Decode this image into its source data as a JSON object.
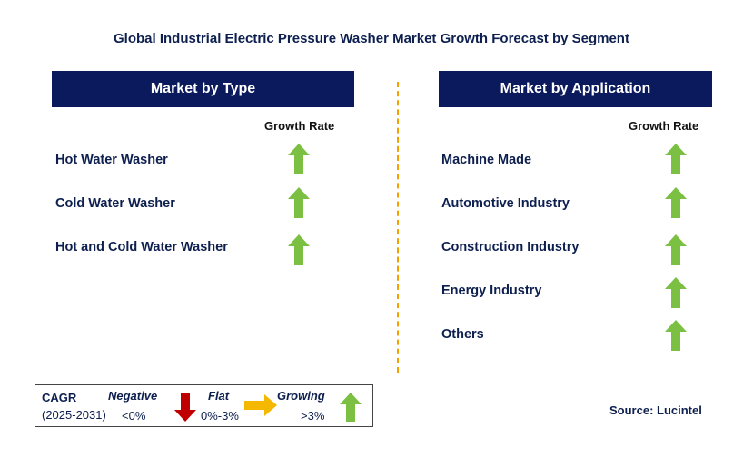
{
  "title": "Global Industrial Electric Pressure Washer Market Growth Forecast by Segment",
  "colors": {
    "header_bg": "#0b1a5c",
    "growing": "#7bc043",
    "negative": "#c00000",
    "flat": "#f5b800",
    "divider": "#f2a100"
  },
  "chart_data": {
    "type": "table",
    "panels": [
      {
        "header": "Market by Type",
        "column_label": "Growth Rate",
        "rows": [
          {
            "label": "Hot Water Washer",
            "growth": "growing",
            "icon": "up-arrow-icon"
          },
          {
            "label": "Cold Water Washer",
            "growth": "growing",
            "icon": "up-arrow-icon"
          },
          {
            "label": "Hot and Cold Water Washer",
            "growth": "growing",
            "icon": "up-arrow-icon"
          }
        ]
      },
      {
        "header": "Market by Application",
        "column_label": "Growth Rate",
        "rows": [
          {
            "label": "Machine Made",
            "growth": "growing",
            "icon": "up-arrow-icon"
          },
          {
            "label": "Automotive Industry",
            "growth": "growing",
            "icon": "up-arrow-icon"
          },
          {
            "label": "Construction Industry",
            "growth": "growing",
            "icon": "up-arrow-icon"
          },
          {
            "label": "Energy Industry",
            "growth": "growing",
            "icon": "up-arrow-icon"
          },
          {
            "label": "Others",
            "growth": "growing",
            "icon": "up-arrow-icon"
          }
        ]
      }
    ]
  },
  "legend": {
    "cagr_label": "CAGR",
    "period": "(2025-2031)",
    "negative": {
      "label": "Negative",
      "range": "<0%",
      "icon": "down-arrow-icon"
    },
    "flat": {
      "label": "Flat",
      "range": "0%-3%",
      "icon": "right-arrow-icon"
    },
    "growing": {
      "label": "Growing",
      "range": ">3%",
      "icon": "up-arrow-icon"
    }
  },
  "source": "Source: Lucintel"
}
